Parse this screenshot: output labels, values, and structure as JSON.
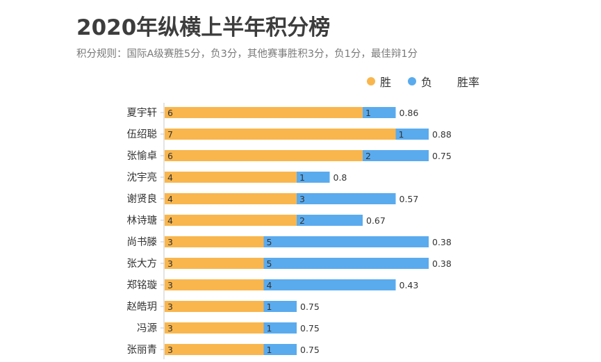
{
  "title": "2020年纵横上半年积分榜",
  "subtitle": "积分规则：国际A级赛胜5分，负3分，其他赛事胜积3分，负1分，最佳辩1分",
  "legend": {
    "win": "胜",
    "loss": "负",
    "rate": "胜率"
  },
  "colors": {
    "win": "#f9b64d",
    "loss": "#5aabee",
    "axis": "#c8c8c8",
    "text": "#333333"
  },
  "chart_data": {
    "type": "bar",
    "orientation": "horizontal",
    "stacked": true,
    "categories": [
      "夏宇轩",
      "伍绍聪",
      "张愉卓",
      "沈宇亮",
      "谢贤良",
      "林诗瑭",
      "尚书滕",
      "张大方",
      "郑铭璇",
      "赵皓玥",
      "冯源",
      "张丽青"
    ],
    "series": [
      {
        "name": "胜",
        "values": [
          6,
          7,
          6,
          4,
          4,
          4,
          3,
          3,
          3,
          3,
          3,
          3
        ]
      },
      {
        "name": "负",
        "values": [
          1,
          1,
          2,
          1,
          3,
          2,
          5,
          5,
          4,
          1,
          1,
          1
        ]
      }
    ],
    "rate_labels": [
      "0.86",
      "0.88",
      "0.75",
      "0.8",
      "0.57",
      "0.67",
      "0.38",
      "0.38",
      "0.43",
      "0.75",
      "0.75",
      "0.75"
    ],
    "legend_position": "top-right",
    "grid": false
  }
}
